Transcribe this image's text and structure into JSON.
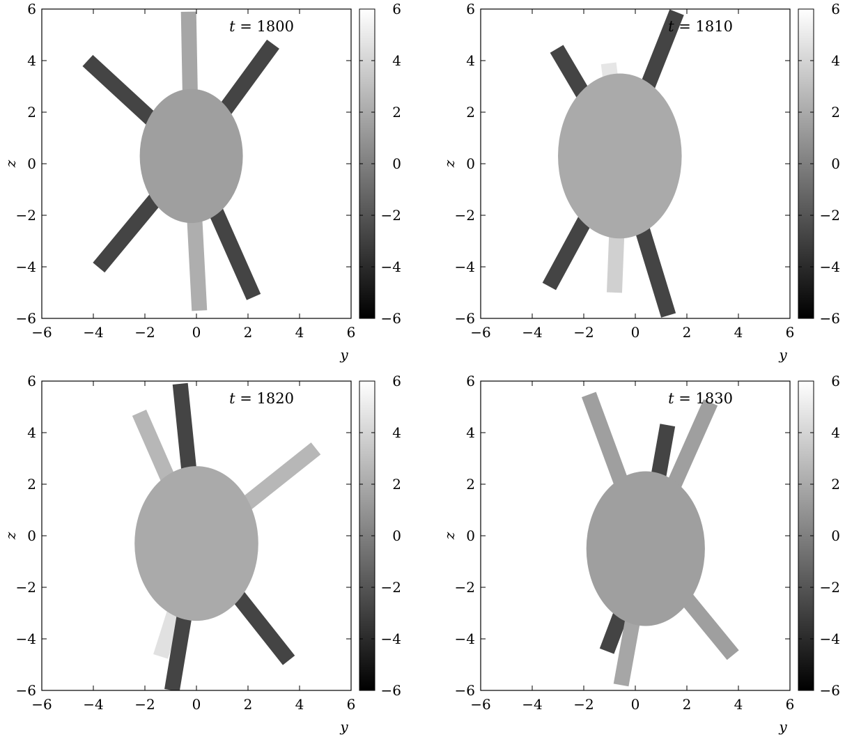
{
  "chart_data": [
    {
      "type": "heatmap",
      "annotation": {
        "variable": "t",
        "operator": " = ",
        "value": "1800"
      },
      "xlabel": "y",
      "ylabel": "z",
      "xlim": [
        -6,
        6
      ],
      "ylim": [
        -6,
        6
      ],
      "xticks": [
        -6,
        -4,
        -2,
        0,
        2,
        4,
        6
      ],
      "yticks": [
        -6,
        -4,
        -2,
        0,
        2,
        4,
        6
      ],
      "colorbar": {
        "range": [
          -6,
          6
        ],
        "ticks": [
          -6,
          -4,
          -2,
          0,
          2,
          4,
          6
        ],
        "colormap": "gray"
      },
      "body": {
        "center": [
          -0.2,
          0.3
        ],
        "radii": [
          2.0,
          2.6
        ],
        "value": 1.5
      },
      "arms": [
        {
          "tip": [
            -0.3,
            5.6
          ],
          "value": 1.8
        },
        {
          "tip": [
            -4.0,
            3.8
          ],
          "value": -2.8
        },
        {
          "tip": [
            2.8,
            4.4
          ],
          "value": -2.8
        },
        {
          "tip": [
            -3.6,
            -3.8
          ],
          "value": -2.8
        },
        {
          "tip": [
            2.1,
            -4.9
          ],
          "value": -2.8
        },
        {
          "tip": [
            0.1,
            -5.4
          ],
          "value": 2.2
        }
      ]
    },
    {
      "type": "heatmap",
      "annotation": {
        "variable": "t",
        "operator": " = ",
        "value": "1810"
      },
      "xlabel": "y",
      "ylabel": "z",
      "xlim": [
        -6,
        6
      ],
      "ylim": [
        -6,
        6
      ],
      "xticks": [
        -6,
        -4,
        -2,
        0,
        2,
        4,
        6
      ],
      "yticks": [
        -6,
        -4,
        -2,
        0,
        2,
        4,
        6
      ],
      "colorbar": {
        "range": [
          -6,
          6
        ],
        "ticks": [
          -6,
          -4,
          -2,
          0,
          2,
          4,
          6
        ],
        "colormap": "gray"
      },
      "body": {
        "center": [
          -0.6,
          0.3
        ],
        "radii": [
          2.4,
          3.2
        ],
        "value": 2.0
      },
      "arms": [
        {
          "tip": [
            -1.0,
            3.6
          ],
          "value": 4.8
        },
        {
          "tip": [
            -2.9,
            4.2
          ],
          "value": -2.8
        },
        {
          "tip": [
            1.5,
            5.6
          ],
          "value": -2.8
        },
        {
          "tip": [
            -3.2,
            -4.5
          ],
          "value": -2.8
        },
        {
          "tip": [
            1.2,
            -5.6
          ],
          "value": -2.8
        },
        {
          "tip": [
            -0.8,
            -4.7
          ],
          "value": 3.8
        }
      ]
    },
    {
      "type": "heatmap",
      "annotation": {
        "variable": "t",
        "operator": " = ",
        "value": "1820"
      },
      "xlabel": "y",
      "ylabel": "z",
      "xlim": [
        -6,
        6
      ],
      "ylim": [
        -6,
        6
      ],
      "xticks": [
        -6,
        -4,
        -2,
        0,
        2,
        4,
        6
      ],
      "yticks": [
        -6,
        -4,
        -2,
        0,
        2,
        4,
        6
      ],
      "colorbar": {
        "range": [
          -6,
          6
        ],
        "ticks": [
          -6,
          -4,
          -2,
          0,
          2,
          4,
          6
        ],
        "colormap": "gray"
      },
      "body": {
        "center": [
          0.0,
          -0.3
        ],
        "radii": [
          2.4,
          3.0
        ],
        "value": 2.0
      },
      "arms": [
        {
          "tip": [
            -0.6,
            5.6
          ],
          "value": -2.8
        },
        {
          "tip": [
            -2.1,
            4.5
          ],
          "value": 2.6
        },
        {
          "tip": [
            4.4,
            3.2
          ],
          "value": 2.6
        },
        {
          "tip": [
            -1.3,
            -4.4
          ],
          "value": 4.6
        },
        {
          "tip": [
            -0.9,
            -5.7
          ],
          "value": -2.8
        },
        {
          "tip": [
            3.4,
            -4.6
          ],
          "value": -2.8
        }
      ]
    },
    {
      "type": "heatmap",
      "annotation": {
        "variable": "t",
        "operator": " = ",
        "value": "1830"
      },
      "xlabel": "y",
      "ylabel": "z",
      "xlim": [
        -6,
        6
      ],
      "ylim": [
        -6,
        6
      ],
      "xticks": [
        -6,
        -4,
        -2,
        0,
        2,
        4,
        6
      ],
      "yticks": [
        -6,
        -4,
        -2,
        0,
        2,
        4,
        6
      ],
      "colorbar": {
        "range": [
          -6,
          6
        ],
        "ticks": [
          -6,
          -4,
          -2,
          0,
          2,
          4,
          6
        ],
        "colormap": "gray"
      },
      "body": {
        "center": [
          0.4,
          -0.5
        ],
        "radii": [
          2.3,
          3.0
        ],
        "value": 1.5
      },
      "arms": [
        {
          "tip": [
            -1.7,
            5.2
          ],
          "value": 1.5
        },
        {
          "tip": [
            2.8,
            4.9
          ],
          "value": 1.5
        },
        {
          "tip": [
            1.2,
            4.0
          ],
          "value": -2.8
        },
        {
          "tip": [
            -1.0,
            -4.2
          ],
          "value": -2.8
        },
        {
          "tip": [
            -0.5,
            -5.5
          ],
          "value": 1.8
        },
        {
          "tip": [
            3.6,
            -4.4
          ],
          "value": 1.5
        }
      ]
    }
  ]
}
